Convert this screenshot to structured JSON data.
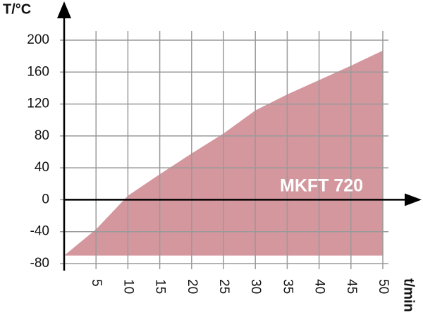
{
  "chart_data": {
    "type": "area",
    "y_label": "T/°C",
    "x_label": "t/min",
    "annotation": "MKFT 720",
    "x": [
      0,
      5,
      10,
      15,
      20,
      25,
      30,
      35,
      40,
      45,
      50
    ],
    "values": [
      -70,
      -37,
      5,
      32,
      58,
      83,
      112,
      132,
      150,
      168,
      187
    ],
    "baseline": -70,
    "color": "#d4979e",
    "xlim": [
      0,
      50
    ],
    "xticks": [
      5,
      10,
      15,
      20,
      25,
      30,
      35,
      40,
      45,
      50
    ],
    "ylim": [
      -80,
      200
    ],
    "yticks": [
      -80,
      -40,
      0,
      40,
      80,
      120,
      160,
      200
    ],
    "grid": true
  }
}
